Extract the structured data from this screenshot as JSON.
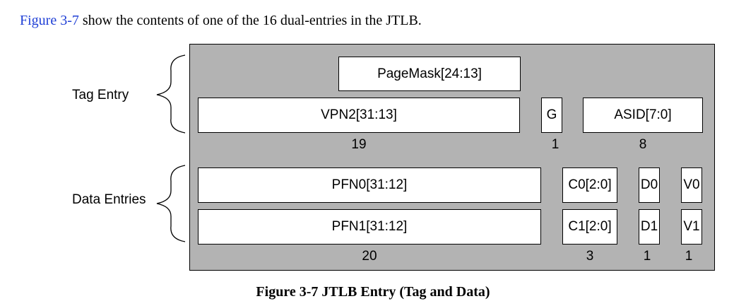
{
  "intro": {
    "xref": "Figure 3-7",
    "rest": " show the contents of one of the 16 dual-entries in the JTLB."
  },
  "labels": {
    "tag_entry": "Tag Entry",
    "data_entries": "Data Entries"
  },
  "tag": {
    "pagemask": "PageMask[24:13]",
    "vpn2": "VPN2[31:13]",
    "g": "G",
    "asid": "ASID[7:0]",
    "width_vpn2": "19",
    "width_g": "1",
    "width_asid": "8"
  },
  "data": {
    "pfn0": "PFN0[31:12]",
    "c0": "C0[2:0]",
    "d0": "D0",
    "v0": "V0",
    "pfn1": "PFN1[31:12]",
    "c1": "C1[2:0]",
    "d1": "D1",
    "v1": "V1",
    "width_pfn": "20",
    "width_c": "3",
    "width_d": "1",
    "width_v": "1"
  },
  "caption": "Figure 3-7 JTLB Entry (Tag and Data)",
  "colors": {
    "panel": "#b3b3b3",
    "link": "#1f3fd6"
  }
}
